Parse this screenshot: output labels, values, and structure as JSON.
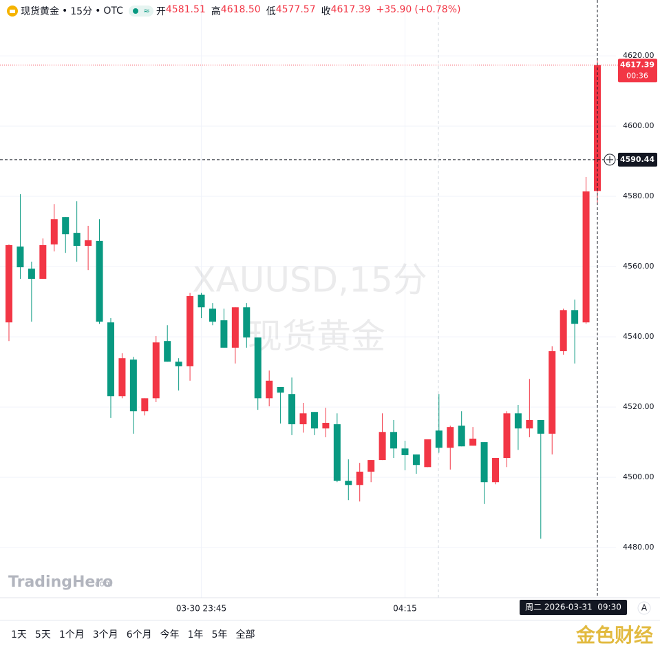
{
  "chart_data": {
    "type": "candlestick",
    "symbol": "现货黄金",
    "interval": "15分",
    "exchange": "OTC",
    "stats": [
      {
        "name": "开",
        "value": 4581.51
      },
      {
        "name": "高",
        "value": {
          "value": 4618.5,
          "label": "4618.50"
        }
      },
      {
        "name": "低",
        "value": 4577.57
      },
      {
        "name": "收",
        "value": 4617.39
      }
    ],
    "change": {
      "value": 35.9,
      "label": "+35.90"
    },
    "change_pct": {
      "value": 0.78,
      "label": "(+0.78%)"
    },
    "watermark": [
      "XAUUSD,15分",
      "现货黄金"
    ],
    "categories": [
      null,
      null,
      null,
      null,
      null,
      null,
      null,
      null,
      null,
      null,
      null,
      null,
      null,
      null,
      null,
      null,
      null,
      "03-30 23:45",
      null,
      null,
      null,
      null,
      null,
      null,
      null,
      null,
      null,
      null,
      null,
      null,
      null,
      null,
      null,
      null,
      null,
      "04:15",
      null,
      null,
      null,
      null,
      null,
      null,
      null,
      null,
      null,
      null,
      null,
      null,
      null,
      null,
      null,
      null,
      null
    ],
    "open": [
      4544.1,
      4565.7,
      4559.4,
      4556.5,
      4566.3,
      4574.1,
      4569.6,
      4565.9,
      4567.3,
      4544.1,
      4523.1,
      4533.5,
      4518.8,
      4522.5,
      4538.8,
      4532.9,
      4531.6,
      4552,
      4548,
      4544.7,
      4536.9,
      4548.4,
      4539.8,
      4522.5,
      4525.7,
      4523.7,
      4515.1,
      4518.6,
      4513.9,
      4515.1,
      4499,
      4497.8,
      4501.6,
      4504.9,
      4512.9,
      4508.2,
      4506.5,
      4502.9,
      4513.3,
      4508.4,
      4514.7,
      4509,
      4510,
      4498.6,
      4505.5,
      4518.2,
      4513.9,
      4516.3,
      4512.4,
      4535.9,
      4547.6,
      4544.1,
      4581.51
    ],
    "high": [
      4566.3,
      4580.6,
      4561.4,
      4568,
      4577.8,
      4574.1,
      4578.6,
      4571.6,
      4573.5,
      4545.3,
      4535.3,
      4534.3,
      4522.5,
      4540.2,
      4543.3,
      4533.9,
      4552.5,
      4552.5,
      4549.6,
      4548,
      4548.4,
      4549.6,
      4539.8,
      4530.4,
      4525.7,
      4528.4,
      4521.2,
      4518.6,
      4519.8,
      4518.2,
      4505.1,
      4504.1,
      4504.9,
      4518.2,
      4516.3,
      4510.4,
      4506.5,
      4510.8,
      4523.7,
      4514.7,
      4518.8,
      4514.3,
      4510,
      4505.5,
      4518.8,
      4520.6,
      4528,
      4516.3,
      4537.3,
      4548,
      4550.6,
      4585.5,
      4618.5
    ],
    "low": [
      4538.8,
      4556.5,
      4544.3,
      4556.5,
      4564.3,
      4563.9,
      4561.4,
      4559,
      4543.7,
      4516.9,
      4522.5,
      4512.4,
      4517.6,
      4521.4,
      4532.9,
      4524.7,
      4527.5,
      4545.3,
      4543.3,
      4536.9,
      4532.4,
      4536.9,
      4519.2,
      4520.2,
      4515.3,
      4512,
      4512.7,
      4512,
      4511.4,
      4498.6,
      4493.5,
      4493.1,
      4498.6,
      4504.9,
      4505.5,
      4502,
      4501,
      4502.9,
      4507,
      4502.2,
      4508.8,
      4509,
      4492.4,
      4498,
      4502.9,
      4507.8,
      4511.4,
      4482.5,
      4506.5,
      4534.9,
      4532.4,
      4543.7,
      4577.57
    ],
    "close": [
      4566.1,
      4559.8,
      4556.5,
      4566.1,
      4573.5,
      4569.2,
      4565.9,
      4567.5,
      4544.3,
      4523.1,
      4533.9,
      4518.8,
      4522.5,
      4538.4,
      4532.9,
      4531.6,
      4551.6,
      4548.4,
      4544.3,
      4536.9,
      4548.4,
      4539.8,
      4522.5,
      4527.5,
      4524.1,
      4515.1,
      4518.2,
      4513.9,
      4515.5,
      4499,
      4497.8,
      4501.6,
      4504.9,
      4512.9,
      4508.2,
      4506.3,
      4503.5,
      4510.8,
      4508.4,
      4514.3,
      4508.8,
      4511,
      4498.6,
      4505.5,
      4518.2,
      4513.9,
      4516.3,
      4512.4,
      4535.9,
      4547.6,
      4543.7,
      4581.4,
      4617.39
    ],
    "up_color": "#f23645",
    "down_color": "#089981",
    "ylim": [
      4465.7,
      4635.9
    ],
    "yticks": [
      {
        "value": 4480,
        "label": "4480.00"
      },
      {
        "value": 4500,
        "label": "4500.00"
      },
      {
        "value": 4520,
        "label": "4520.00"
      },
      {
        "value": 4540,
        "label": "4540.00"
      },
      {
        "value": 4560,
        "label": "4560.00"
      },
      {
        "value": 4580,
        "label": "4580.00"
      },
      {
        "value": 4600,
        "label": "4600.00"
      },
      {
        "value": 4620,
        "label": "4620.00"
      }
    ],
    "grid": true,
    "last_price": 4617.39,
    "countdown": "00:36",
    "crosshair_price": 4590.44,
    "crosshair_time": "周二 2026-03-31  09:30",
    "logo": "TradingHero",
    "logo_suffix": ".com",
    "auto_button": "A",
    "ranges": [
      "1天",
      "5天",
      "1个月",
      "3个月",
      "6个月",
      "今年",
      "1年",
      "5年",
      "全部"
    ],
    "source_watermark": "金色财经"
  }
}
